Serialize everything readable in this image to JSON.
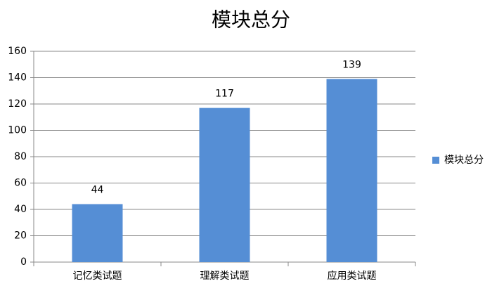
{
  "chart_data": {
    "type": "bar",
    "title": "模块总分",
    "categories": [
      "记忆类试题",
      "理解类试题",
      "应用类试题"
    ],
    "series": [
      {
        "name": "模块总分",
        "color": "#558ed5",
        "values": [
          44,
          117,
          139
        ]
      }
    ],
    "ylim": [
      0,
      160
    ],
    "yticks": [
      0,
      20,
      40,
      60,
      80,
      100,
      120,
      140,
      160
    ],
    "grid": true,
    "legend": "right"
  }
}
